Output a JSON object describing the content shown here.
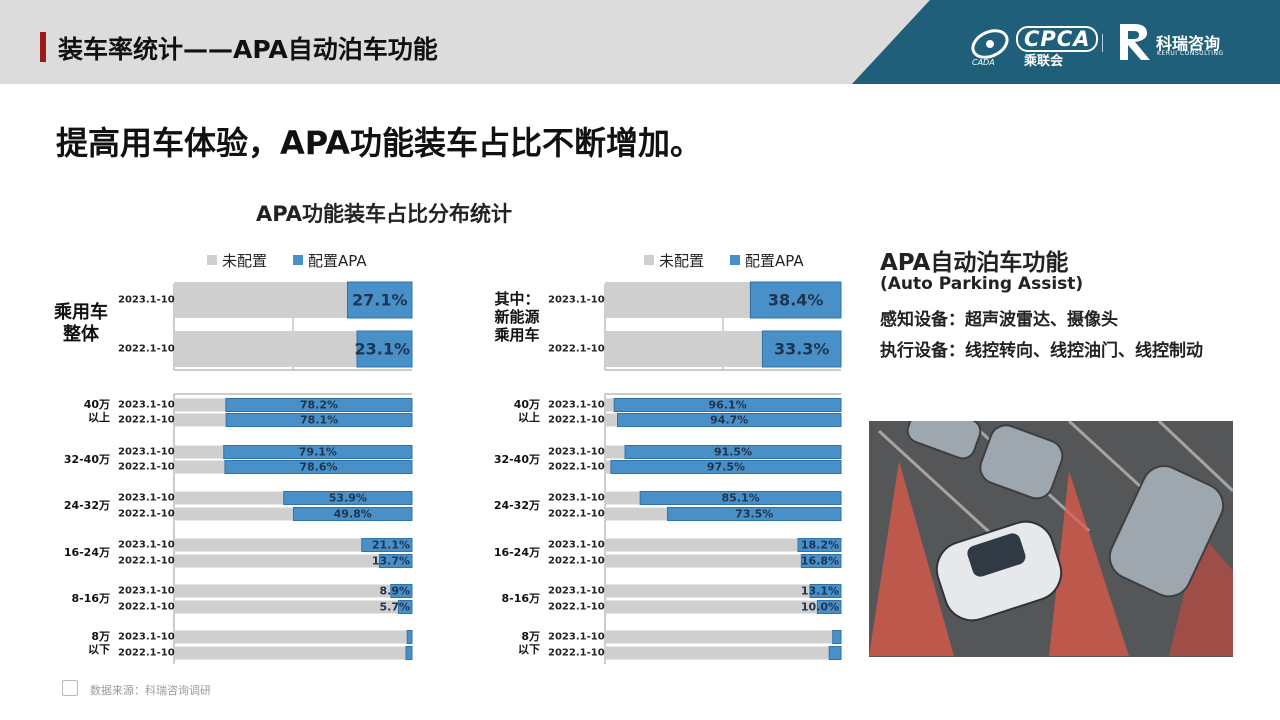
{
  "header": {
    "title": "装车率统计——APA自动泊车功能",
    "logo_cpca": "CPCA",
    "logo_cpca_cn": "乘联会",
    "logo_cpca_small": "CADA",
    "logo_kerui": "科瑞咨询",
    "logo_kerui_en": "KERUI CONSULTING"
  },
  "headline": "提高用车体验，APA功能装车占比不断增加。",
  "chart_section_title": "APA功能装车占比分布统计",
  "legend": {
    "unconfigured": "未配置",
    "configured": "配置APA"
  },
  "colors": {
    "unconfigured": "#cfcfcf",
    "configured": "#4a90c8",
    "configured_dark": "#2f73ab",
    "header_dark": "#1f5f7a"
  },
  "chart_data": [
    {
      "type": "bar",
      "stacked": true,
      "orientation": "horizontal",
      "title": "",
      "series": [
        {
          "name": "未配置"
        },
        {
          "name": "配置APA"
        }
      ],
      "groups": [
        {
          "label_lines": [
            "乘用车",
            "整体"
          ],
          "rows": [
            {
              "period": "2023.1-10",
              "value": 27.1,
              "label": "27.1%"
            },
            {
              "period": "2022.1-10",
              "value": 23.1,
              "label": "23.1%"
            }
          ]
        },
        {
          "label_lines": [
            "40万",
            "以上"
          ],
          "rows": [
            {
              "period": "2023.1-10",
              "value": 78.2,
              "label": "78.2%"
            },
            {
              "period": "2022.1-10",
              "value": 78.1,
              "label": "78.1%"
            }
          ]
        },
        {
          "label_lines": [
            "32-40万"
          ],
          "rows": [
            {
              "period": "2023.1-10",
              "value": 79.1,
              "label": "79.1%"
            },
            {
              "period": "2022.1-10",
              "value": 78.6,
              "label": "78.6%"
            }
          ]
        },
        {
          "label_lines": [
            "24-32万"
          ],
          "rows": [
            {
              "period": "2023.1-10",
              "value": 53.9,
              "label": "53.9%"
            },
            {
              "period": "2022.1-10",
              "value": 49.8,
              "label": "49.8%"
            }
          ]
        },
        {
          "label_lines": [
            "16-24万"
          ],
          "rows": [
            {
              "period": "2023.1-10",
              "value": 21.1,
              "label": "21.1%"
            },
            {
              "period": "2022.1-10",
              "value": 13.7,
              "label": "13.7%"
            }
          ]
        },
        {
          "label_lines": [
            "8-16万"
          ],
          "rows": [
            {
              "period": "2023.1-10",
              "value": 8.9,
              "label": "8.9%"
            },
            {
              "period": "2022.1-10",
              "value": 5.7,
              "label": "5.7%"
            }
          ]
        },
        {
          "label_lines": [
            "8万",
            "以下"
          ],
          "rows": [
            {
              "period": "2023.1-10",
              "value": 2,
              "label": ""
            },
            {
              "period": "2022.1-10",
              "value": 2.5,
              "label": ""
            }
          ]
        }
      ]
    },
    {
      "type": "bar",
      "stacked": true,
      "orientation": "horizontal",
      "title": "",
      "series": [
        {
          "name": "未配置"
        },
        {
          "name": "配置APA"
        }
      ],
      "groups": [
        {
          "label_lines": [
            "其中：",
            "新能源",
            "乘用车"
          ],
          "rows": [
            {
              "period": "2023.1-10",
              "value": 38.4,
              "label": "38.4%"
            },
            {
              "period": "2022.1-10",
              "value": 33.3,
              "label": "33.3%"
            }
          ]
        },
        {
          "label_lines": [
            "40万",
            "以上"
          ],
          "rows": [
            {
              "period": "2023.1-10",
              "value": 96.1,
              "label": "96.1%"
            },
            {
              "period": "2022.1-10",
              "value": 94.7,
              "label": "94.7%"
            }
          ]
        },
        {
          "label_lines": [
            "32-40万"
          ],
          "rows": [
            {
              "period": "2023.1-10",
              "value": 91.5,
              "label": "91.5%"
            },
            {
              "period": "2022.1-10",
              "value": 97.5,
              "label": "97.5%"
            }
          ]
        },
        {
          "label_lines": [
            "24-32万"
          ],
          "rows": [
            {
              "period": "2023.1-10",
              "value": 85.1,
              "label": "85.1%"
            },
            {
              "period": "2022.1-10",
              "value": 73.5,
              "label": "73.5%"
            }
          ]
        },
        {
          "label_lines": [
            "16-24万"
          ],
          "rows": [
            {
              "period": "2023.1-10",
              "value": 18.2,
              "label": "18.2%"
            },
            {
              "period": "2022.1-10",
              "value": 16.8,
              "label": "16.8%"
            }
          ]
        },
        {
          "label_lines": [
            "8-16万"
          ],
          "rows": [
            {
              "period": "2023.1-10",
              "value": 13.1,
              "label": "13.1%"
            },
            {
              "period": "2022.1-10",
              "value": 10.0,
              "label": "10.0%"
            }
          ]
        },
        {
          "label_lines": [
            "8万",
            "以下"
          ],
          "rows": [
            {
              "period": "2023.1-10",
              "value": 3.5,
              "label": ""
            },
            {
              "period": "2022.1-10",
              "value": 5,
              "label": ""
            }
          ]
        }
      ]
    }
  ],
  "side": {
    "title": "APA自动泊车功能",
    "subtitle": "(Auto Parking Assist)",
    "line1": "感知设备：超声波雷达、摄像头",
    "line2": "执行设备：线控转向、线控油门、线控制动"
  },
  "photo": {
    "name": "parking-lot-cars-photo"
  },
  "source": "数据来源：科瑞咨询调研"
}
